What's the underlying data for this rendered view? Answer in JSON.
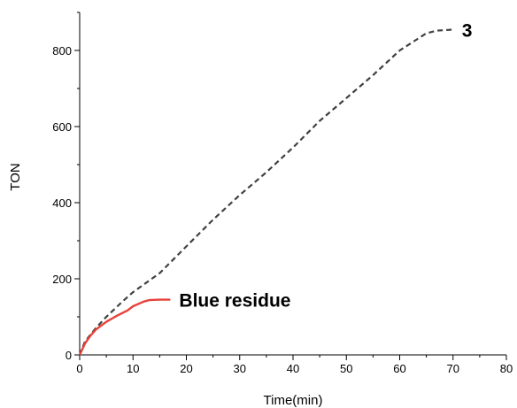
{
  "chart_data": {
    "type": "line",
    "xlabel": "Time(min)",
    "ylabel": "TON",
    "xlim": [
      0,
      80
    ],
    "ylim": [
      0,
      900
    ],
    "xticks": [
      0,
      10,
      20,
      30,
      40,
      50,
      60,
      70,
      80
    ],
    "yticks": [
      0,
      200,
      400,
      600,
      800
    ],
    "grid": false,
    "series": [
      {
        "name": "3",
        "color": "#404040",
        "dash": "dashed",
        "x": [
          0,
          1,
          3,
          5,
          8,
          10,
          15,
          20,
          25,
          30,
          35,
          40,
          45,
          50,
          55,
          60,
          65,
          67,
          70
        ],
        "y": [
          0,
          35,
          70,
          100,
          140,
          165,
          215,
          285,
          355,
          420,
          480,
          545,
          615,
          675,
          735,
          800,
          845,
          852,
          855
        ]
      },
      {
        "name": "Blue residue",
        "color": "#e8403a",
        "dash": "solid",
        "x": [
          0,
          1,
          2,
          3,
          5,
          7,
          9,
          10,
          12,
          13,
          15,
          17
        ],
        "y": [
          0,
          30,
          50,
          66,
          87,
          103,
          117,
          128,
          140,
          144,
          145,
          145
        ]
      }
    ]
  }
}
